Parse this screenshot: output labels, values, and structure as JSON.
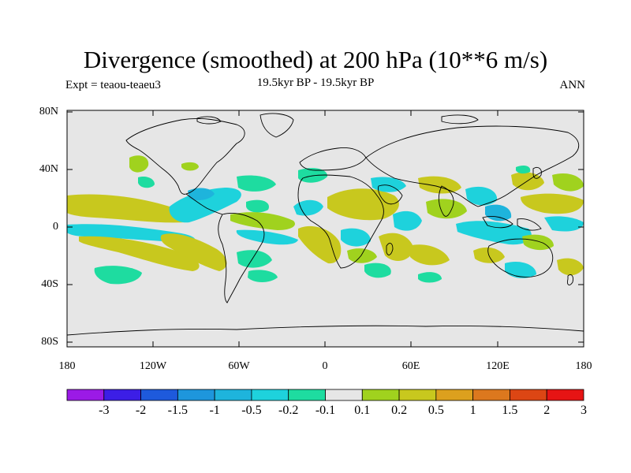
{
  "title": "Divergence (smoothed) at 200 hPa (10**6 m/s)",
  "subtitle_left": "Expt = teaou-teaeu3",
  "subtitle_center": "19.5kyr BP - 19.5kyr BP",
  "subtitle_right": "ANN",
  "lat_labels": [
    "80N",
    "40N",
    "0",
    "40S",
    "80S"
  ],
  "lon_labels": [
    "180",
    "120W",
    "60W",
    "0",
    "60E",
    "120E",
    "180"
  ],
  "colorbar": {
    "labels": [
      "-3",
      "-2",
      "-1.5",
      "-1",
      "-0.5",
      "-0.2",
      "-0.1",
      "0.1",
      "0.2",
      "0.5",
      "1",
      "1.5",
      "2",
      "3"
    ],
    "colors": [
      "#9b1ae6",
      "#3c1ee6",
      "#1e5adc",
      "#1e96dc",
      "#1eb4dc",
      "#1ed2dc",
      "#1edca0",
      "#e6e6e6",
      "#a0d21e",
      "#c8c81e",
      "#dca01e",
      "#dc781e",
      "#dc4614",
      "#e61414"
    ]
  }
}
